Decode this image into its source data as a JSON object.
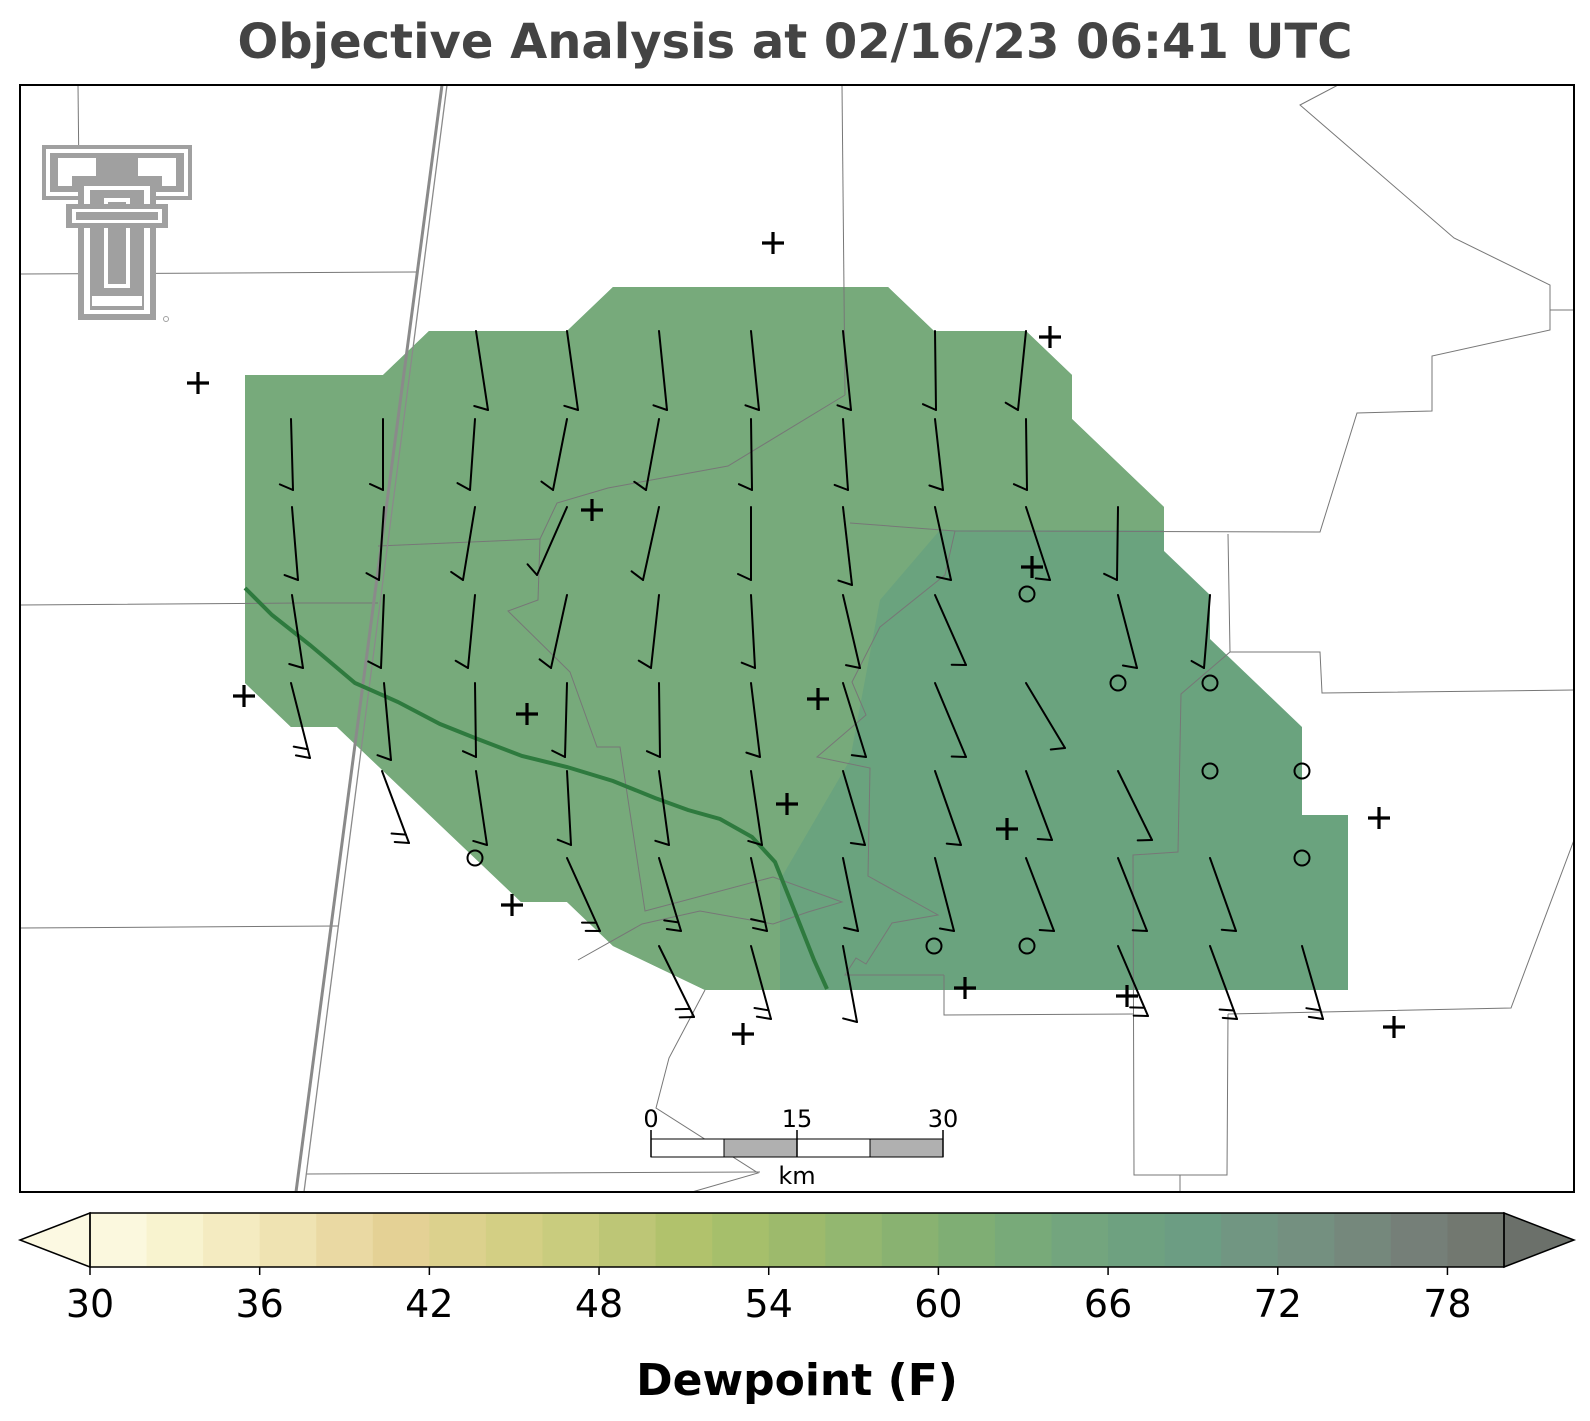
{
  "title": "Objective Analysis at 02/16/23 06:41 UTC",
  "logo": {
    "icon": "texas-tech-double-t-logo",
    "color": "#a0a0a0"
  },
  "scale_bar": {
    "ticks": [
      "0",
      "15",
      "30"
    ],
    "unit": "km"
  },
  "colorbar": {
    "label": "Dewpoint (F)",
    "ticks": [
      "30",
      "36",
      "42",
      "48",
      "54",
      "60",
      "66",
      "72",
      "78"
    ],
    "min": 30,
    "max": 80,
    "extend": "both",
    "colors": [
      "#fbf8de",
      "#f8f3cf",
      "#f4ebc1",
      "#efe3b2",
      "#ead9a3",
      "#e4d195",
      "#dcd18d",
      "#d3cf84",
      "#c9cc7e",
      "#bdc676",
      "#b1c26c",
      "#a6bf6b",
      "#9dba6c",
      "#93b770",
      "#89b271",
      "#7fae74",
      "#78aa79",
      "#73a57e",
      "#6ea180",
      "#6c9d83",
      "#719682",
      "#749080",
      "#75887c",
      "#757f78",
      "#727870"
    ],
    "under_color": "#fcf9e2",
    "over_color": "#6b706a"
  },
  "fill_colors": {
    "upper": "#77aa7b",
    "lower": "#6aa37e",
    "front": "#2e7a3e"
  },
  "stations": {
    "plus": [
      [
        198,
        383
      ],
      [
        244,
        696
      ],
      [
        592,
        510
      ],
      [
        773,
        243
      ],
      [
        1050,
        337
      ],
      [
        1032,
        567
      ],
      [
        527,
        714
      ],
      [
        818,
        699
      ],
      [
        787,
        804
      ],
      [
        1007,
        829
      ],
      [
        1379,
        818
      ],
      [
        1394,
        1027
      ],
      [
        965,
        988
      ],
      [
        1127,
        996
      ],
      [
        512,
        905
      ],
      [
        743,
        1034
      ]
    ],
    "calm": [
      [
        1027,
        594
      ],
      [
        1118,
        683
      ],
      [
        1210,
        683
      ],
      [
        1210,
        771
      ],
      [
        1302,
        771
      ],
      [
        1302,
        858
      ],
      [
        934,
        946
      ],
      [
        1027,
        946
      ],
      [
        475,
        858
      ]
    ]
  },
  "barbs": [
    [
      [
        476,
        331
      ],
      [
        488,
        410
      ],
      1
    ],
    [
      [
        567,
        331
      ],
      [
        578,
        410
      ],
      1
    ],
    [
      [
        659,
        331
      ],
      [
        667,
        410
      ],
      1
    ],
    [
      [
        751,
        331
      ],
      [
        759,
        410
      ],
      1
    ],
    [
      [
        843,
        331
      ],
      [
        851,
        410
      ],
      1
    ],
    [
      [
        935,
        331
      ],
      [
        936,
        410
      ],
      1
    ],
    [
      [
        1026,
        331
      ],
      [
        1018,
        410
      ],
      1
    ],
    [
      [
        291,
        419
      ],
      [
        293,
        490
      ],
      1
    ],
    [
      [
        383,
        419
      ],
      [
        383,
        490
      ],
      1
    ],
    [
      [
        475,
        419
      ],
      [
        470,
        490
      ],
      1
    ],
    [
      [
        567,
        419
      ],
      [
        553,
        490
      ],
      1
    ],
    [
      [
        659,
        419
      ],
      [
        646,
        490
      ],
      1
    ],
    [
      [
        751,
        419
      ],
      [
        752,
        490
      ],
      1
    ],
    [
      [
        843,
        419
      ],
      [
        848,
        490
      ],
      1
    ],
    [
      [
        935,
        419
      ],
      [
        943,
        490
      ],
      1
    ],
    [
      [
        1026,
        419
      ],
      [
        1027,
        490
      ],
      1
    ],
    [
      [
        292,
        507
      ],
      [
        298,
        580
      ],
      1
    ],
    [
      [
        384,
        507
      ],
      [
        379,
        580
      ],
      1
    ],
    [
      [
        475,
        507
      ],
      [
        463,
        580
      ],
      1
    ],
    [
      [
        567,
        507
      ],
      [
        537,
        575
      ],
      1
    ],
    [
      [
        659,
        507
      ],
      [
        643,
        580
      ],
      1
    ],
    [
      [
        751,
        507
      ],
      [
        751,
        580
      ],
      1
    ],
    [
      [
        843,
        507
      ],
      [
        852,
        585
      ],
      1
    ],
    [
      [
        935,
        507
      ],
      [
        951,
        580
      ],
      1
    ],
    [
      [
        1026,
        507
      ],
      [
        1050,
        580
      ],
      1
    ],
    [
      [
        1118,
        507
      ],
      [
        1117,
        580
      ],
      1
    ],
    [
      [
        292,
        595
      ],
      [
        303,
        668
      ],
      1
    ],
    [
      [
        384,
        595
      ],
      [
        381,
        668
      ],
      1
    ],
    [
      [
        475,
        595
      ],
      [
        468,
        668
      ],
      1
    ],
    [
      [
        567,
        595
      ],
      [
        551,
        668
      ],
      1
    ],
    [
      [
        659,
        595
      ],
      [
        651,
        668
      ],
      1
    ],
    [
      [
        751,
        595
      ],
      [
        755,
        668
      ],
      1
    ],
    [
      [
        843,
        595
      ],
      [
        860,
        668
      ],
      1
    ],
    [
      [
        935,
        595
      ],
      [
        966,
        665
      ],
      1
    ],
    [
      [
        1118,
        595
      ],
      [
        1137,
        668
      ],
      1
    ],
    [
      [
        1210,
        595
      ],
      [
        1204,
        668
      ],
      1
    ],
    [
      [
        291,
        683
      ],
      [
        310,
        758
      ],
      2
    ],
    [
      [
        384,
        683
      ],
      [
        391,
        760
      ],
      1
    ],
    [
      [
        475,
        683
      ],
      [
        476,
        757
      ],
      1
    ],
    [
      [
        567,
        683
      ],
      [
        565,
        757
      ],
      1
    ],
    [
      [
        659,
        683
      ],
      [
        660,
        757
      ],
      1
    ],
    [
      [
        751,
        683
      ],
      [
        760,
        757
      ],
      1
    ],
    [
      [
        843,
        683
      ],
      [
        866,
        757
      ],
      1
    ],
    [
      [
        935,
        683
      ],
      [
        966,
        757
      ],
      1
    ],
    [
      [
        1026,
        683
      ],
      [
        1065,
        748
      ],
      1
    ],
    [
      [
        382,
        771
      ],
      [
        409,
        843
      ],
      2
    ],
    [
      [
        476,
        771
      ],
      [
        487,
        845
      ],
      1
    ],
    [
      [
        567,
        771
      ],
      [
        571,
        845
      ],
      1
    ],
    [
      [
        659,
        771
      ],
      [
        669,
        845
      ],
      1
    ],
    [
      [
        751,
        771
      ],
      [
        762,
        845
      ],
      1
    ],
    [
      [
        843,
        771
      ],
      [
        865,
        845
      ],
      1
    ],
    [
      [
        935,
        771
      ],
      [
        961,
        845
      ],
      1
    ],
    [
      [
        1026,
        771
      ],
      [
        1052,
        840
      ],
      1
    ],
    [
      [
        1118,
        771
      ],
      [
        1152,
        840
      ],
      1
    ],
    [
      [
        567,
        858
      ],
      [
        600,
        931
      ],
      2
    ],
    [
      [
        659,
        858
      ],
      [
        681,
        931
      ],
      2
    ],
    [
      [
        751,
        858
      ],
      [
        767,
        931
      ],
      2
    ],
    [
      [
        843,
        858
      ],
      [
        858,
        931
      ],
      1
    ],
    [
      [
        935,
        858
      ],
      [
        954,
        931
      ],
      1
    ],
    [
      [
        1026,
        858
      ],
      [
        1054,
        931
      ],
      1
    ],
    [
      [
        1118,
        858
      ],
      [
        1147,
        931
      ],
      1
    ],
    [
      [
        1210,
        858
      ],
      [
        1236,
        931
      ],
      1
    ],
    [
      [
        659,
        946
      ],
      [
        694,
        1017
      ],
      2
    ],
    [
      [
        751,
        946
      ],
      [
        771,
        1019
      ],
      2
    ],
    [
      [
        843,
        946
      ],
      [
        857,
        1022
      ],
      1
    ],
    [
      [
        1118,
        946
      ],
      [
        1148,
        1016
      ],
      2
    ],
    [
      [
        1210,
        946
      ],
      [
        1237,
        1019
      ],
      2
    ],
    [
      [
        1302,
        946
      ],
      [
        1323,
        1019
      ],
      2
    ]
  ]
}
